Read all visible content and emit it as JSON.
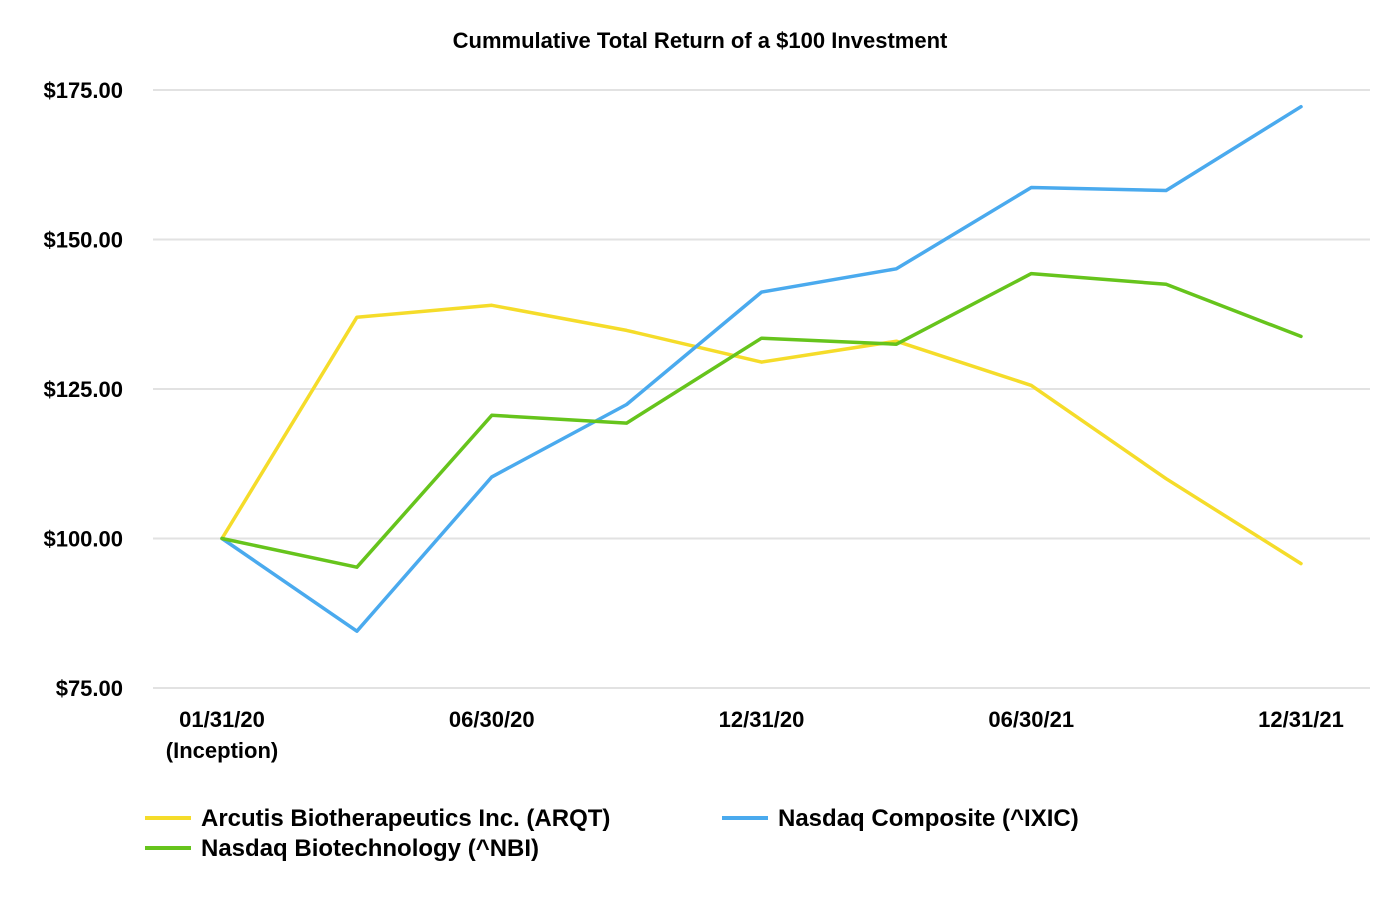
{
  "chart_data": {
    "type": "line",
    "title": "Cummulative Total Return of a $100 Investment",
    "xlabel": "",
    "ylabel": "",
    "ylim": [
      75,
      175
    ],
    "yticks": [
      "$75.00",
      "$100.00",
      "$125.00",
      "$150.00",
      "$175.00"
    ],
    "ytick_values": [
      75,
      100,
      125,
      150,
      175
    ],
    "x_tick_labels": [
      {
        "index": 0,
        "lines": [
          "01/31/20",
          "(Inception)"
        ]
      },
      {
        "index": 2,
        "lines": [
          "06/30/20"
        ]
      },
      {
        "index": 4,
        "lines": [
          "12/31/20"
        ]
      },
      {
        "index": 6,
        "lines": [
          "06/30/21"
        ]
      },
      {
        "index": 8,
        "lines": [
          "12/31/21"
        ]
      }
    ],
    "num_points": 9,
    "grid": true,
    "legend_placement": "bottom",
    "series": [
      {
        "name": "Arcutis Biotherapeutics Inc. (ARQT)",
        "color": "#f5dc2a",
        "values": [
          100.0,
          137.0,
          139.0,
          134.8,
          129.5,
          133.0,
          125.6,
          110.0,
          95.8
        ]
      },
      {
        "name": "Nasdaq Composite (^IXIC)",
        "color": "#4aaaee",
        "values": [
          100.0,
          84.5,
          110.3,
          122.4,
          141.2,
          145.1,
          158.7,
          158.2,
          172.2
        ]
      },
      {
        "name": "Nasdaq Biotechnology (^NBI)",
        "color": "#66c41c",
        "values": [
          100.0,
          95.2,
          120.6,
          119.3,
          133.5,
          132.5,
          144.3,
          142.5,
          133.8
        ]
      }
    ]
  }
}
